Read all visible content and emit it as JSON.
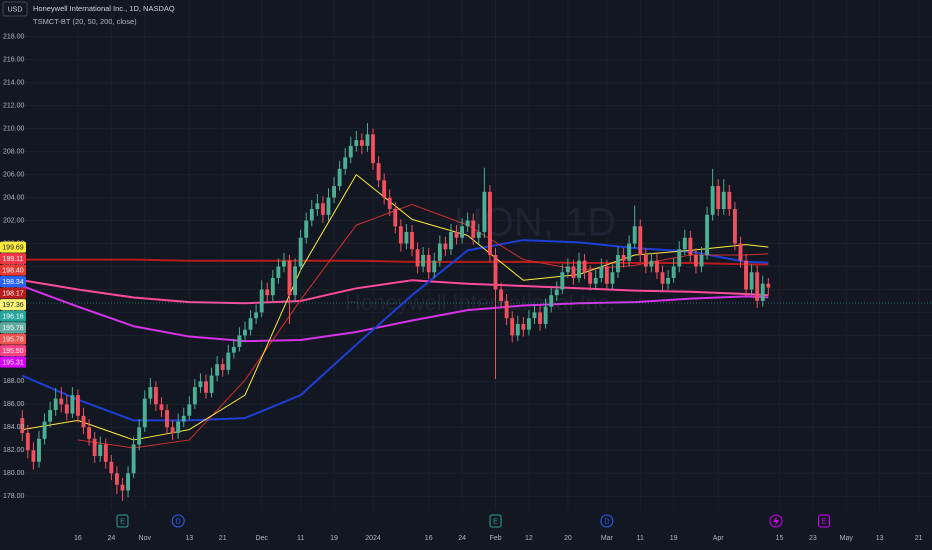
{
  "chart_data": {
    "type": "candlestick",
    "title": "Honeywell International Inc., 1D, NASDAQ",
    "subtitle": "TSMCT-BT (20, 50, 200, close)",
    "currency": "USD",
    "watermark": [
      "HON, 1D",
      "Honeywell International Inc."
    ],
    "up_color": "#4caf93",
    "down_color": "#f0505e",
    "grid": true,
    "ylim": [
      176.8,
      221.2
    ],
    "xlim": [
      -4,
      163.4
    ],
    "yticks": [
      {
        "value": 178,
        "label": "178.00"
      },
      {
        "value": 180,
        "label": "180.00"
      },
      {
        "value": 182,
        "label": "182.00"
      },
      {
        "value": 184,
        "label": "184.00"
      },
      {
        "value": 186,
        "label": "186.00"
      },
      {
        "value": 188,
        "label": "188.00"
      },
      {
        "value": 190,
        "label": "190.00"
      },
      {
        "value": 192,
        "label": "192.00"
      },
      {
        "value": 194,
        "label": "194.00"
      },
      {
        "value": 196,
        "label": "196.00"
      },
      {
        "value": 198,
        "label": "198.00"
      },
      {
        "value": 200,
        "label": "200.00"
      },
      {
        "value": 202,
        "label": "202.00"
      },
      {
        "value": 204,
        "label": "204.00"
      },
      {
        "value": 206,
        "label": "206.00"
      },
      {
        "value": 208,
        "label": "208.00"
      },
      {
        "value": 210,
        "label": "210.00"
      },
      {
        "value": 212,
        "label": "212.00"
      },
      {
        "value": 214,
        "label": "214.00"
      },
      {
        "value": 216,
        "label": "216.00"
      },
      {
        "value": 218,
        "label": "218.00"
      }
    ],
    "xticks": [
      {
        "value": 10,
        "label": "16"
      },
      {
        "value": 16,
        "label": "24"
      },
      {
        "value": 22,
        "label": "Nov"
      },
      {
        "value": 30,
        "label": "13"
      },
      {
        "value": 36,
        "label": "21"
      },
      {
        "value": 43,
        "label": "Dec"
      },
      {
        "value": 50,
        "label": "11"
      },
      {
        "value": 56,
        "label": "19"
      },
      {
        "value": 63,
        "label": "2024"
      },
      {
        "value": 73,
        "label": "16"
      },
      {
        "value": 79,
        "label": "24"
      },
      {
        "value": 85,
        "label": "Feb"
      },
      {
        "value": 91,
        "label": "12"
      },
      {
        "value": 98,
        "label": "20"
      },
      {
        "value": 105,
        "label": "Mar"
      },
      {
        "value": 111,
        "label": "11"
      },
      {
        "value": 117,
        "label": "19"
      },
      {
        "value": 125,
        "label": "Apr"
      },
      {
        "value": 136,
        "label": "15"
      },
      {
        "value": 142,
        "label": "23"
      },
      {
        "value": 148,
        "label": "May"
      },
      {
        "value": 154,
        "label": "13"
      },
      {
        "value": 161,
        "label": "21"
      }
    ],
    "ohlc": [
      [
        184.8,
        185.5,
        182.8,
        183.5
      ],
      [
        183.5,
        184.2,
        181.3,
        182.0
      ],
      [
        182.0,
        182.7,
        180.3,
        181.0
      ],
      [
        181.0,
        183.7,
        180.5,
        183.0
      ],
      [
        183.0,
        185.2,
        182.5,
        184.5
      ],
      [
        184.5,
        186.2,
        184.0,
        185.5
      ],
      [
        185.5,
        187.4,
        185.0,
        186.5
      ],
      [
        186.5,
        187.5,
        185.3,
        186.0
      ],
      [
        186.0,
        186.8,
        184.6,
        185.2
      ],
      [
        185.2,
        187.5,
        184.8,
        186.8
      ],
      [
        186.8,
        187.3,
        184.4,
        185.0
      ],
      [
        185.0,
        185.7,
        183.4,
        184.0
      ],
      [
        184.0,
        184.7,
        182.4,
        183.0
      ],
      [
        183.0,
        183.6,
        180.9,
        181.5
      ],
      [
        181.5,
        183.2,
        181.0,
        182.5
      ],
      [
        182.5,
        183.0,
        180.4,
        181.0
      ],
      [
        181.0,
        181.6,
        179.4,
        180.0
      ],
      [
        180.0,
        180.6,
        178.2,
        179.0
      ],
      [
        179.0,
        179.6,
        177.6,
        178.5
      ],
      [
        178.5,
        180.6,
        177.9,
        180.0
      ],
      [
        180.0,
        183.2,
        179.6,
        182.5
      ],
      [
        182.5,
        184.7,
        182.0,
        184.0
      ],
      [
        184.0,
        187.2,
        183.6,
        186.5
      ],
      [
        186.5,
        188.3,
        186.0,
        187.5
      ],
      [
        187.5,
        188.0,
        185.4,
        186.0
      ],
      [
        186.0,
        186.6,
        184.9,
        185.5
      ],
      [
        185.5,
        186.0,
        183.4,
        184.0
      ],
      [
        184.0,
        184.6,
        182.9,
        183.5
      ],
      [
        183.5,
        185.2,
        183.0,
        184.5
      ],
      [
        184.5,
        185.7,
        184.0,
        185.0
      ],
      [
        185.0,
        186.7,
        184.6,
        186.0
      ],
      [
        186.0,
        188.2,
        185.6,
        187.5
      ],
      [
        187.5,
        188.7,
        187.0,
        188.0
      ],
      [
        188.0,
        188.6,
        186.5,
        187.0
      ],
      [
        187.0,
        189.2,
        186.6,
        188.5
      ],
      [
        188.5,
        190.2,
        188.0,
        189.5
      ],
      [
        189.5,
        190.0,
        188.4,
        189.0
      ],
      [
        189.0,
        191.2,
        188.6,
        190.5
      ],
      [
        190.5,
        191.7,
        190.0,
        191.0
      ],
      [
        191.0,
        192.7,
        190.6,
        192.0
      ],
      [
        192.0,
        193.2,
        191.5,
        192.5
      ],
      [
        192.5,
        194.2,
        192.0,
        193.5
      ],
      [
        193.5,
        194.7,
        193.0,
        194.0
      ],
      [
        194.0,
        196.8,
        193.6,
        196.0
      ],
      [
        196.0,
        196.6,
        194.8,
        195.5
      ],
      [
        195.5,
        197.7,
        195.0,
        197.0
      ],
      [
        197.0,
        198.7,
        196.5,
        198.0
      ],
      [
        198.0,
        199.2,
        197.5,
        198.5
      ],
      [
        198.5,
        199.0,
        193.0,
        195.5
      ],
      [
        195.5,
        198.7,
        195.0,
        198.0
      ],
      [
        198.0,
        201.2,
        197.6,
        200.5
      ],
      [
        200.5,
        202.7,
        200.0,
        202.0
      ],
      [
        202.0,
        203.8,
        201.5,
        203.0
      ],
      [
        203.0,
        204.3,
        202.4,
        203.5
      ],
      [
        203.5,
        204.1,
        201.8,
        202.5
      ],
      [
        202.5,
        204.8,
        202.0,
        204.0
      ],
      [
        204.0,
        205.8,
        203.5,
        205.0
      ],
      [
        205.0,
        207.2,
        204.6,
        206.5
      ],
      [
        206.5,
        208.3,
        206.0,
        207.5
      ],
      [
        207.5,
        209.3,
        207.0,
        208.5
      ],
      [
        208.5,
        209.8,
        208.0,
        209.0
      ],
      [
        209.0,
        209.6,
        207.8,
        208.5
      ],
      [
        208.5,
        210.5,
        208.0,
        209.5
      ],
      [
        209.5,
        210.0,
        206.4,
        207.0
      ],
      [
        207.0,
        207.6,
        204.9,
        205.5
      ],
      [
        205.5,
        206.1,
        203.4,
        204.0
      ],
      [
        204.0,
        204.7,
        202.4,
        203.0
      ],
      [
        203.0,
        203.6,
        200.9,
        201.5
      ],
      [
        201.5,
        202.1,
        199.3,
        200.0
      ],
      [
        200.0,
        201.7,
        199.5,
        201.0
      ],
      [
        201.0,
        201.6,
        198.9,
        199.5
      ],
      [
        199.5,
        200.1,
        197.4,
        198.0
      ],
      [
        198.0,
        199.7,
        197.5,
        199.0
      ],
      [
        199.0,
        199.6,
        196.9,
        197.5
      ],
      [
        197.5,
        199.2,
        197.0,
        198.5
      ],
      [
        198.5,
        200.7,
        198.0,
        200.0
      ],
      [
        200.0,
        200.6,
        198.9,
        199.5
      ],
      [
        199.5,
        201.7,
        199.0,
        201.0
      ],
      [
        201.0,
        201.6,
        199.9,
        200.5
      ],
      [
        200.5,
        202.2,
        200.0,
        201.5
      ],
      [
        201.5,
        202.7,
        201.0,
        202.0
      ],
      [
        202.0,
        202.6,
        199.9,
        200.5
      ],
      [
        200.5,
        201.7,
        200.0,
        201.0
      ],
      [
        201.0,
        206.6,
        200.5,
        204.5
      ],
      [
        204.5,
        205.1,
        198.4,
        199.0
      ],
      [
        199.0,
        199.6,
        188.2,
        196.0
      ],
      [
        196.0,
        196.6,
        194.4,
        195.0
      ],
      [
        195.0,
        195.6,
        192.9,
        193.5
      ],
      [
        193.5,
        194.1,
        191.4,
        192.0
      ],
      [
        192.0,
        193.7,
        191.5,
        193.0
      ],
      [
        193.0,
        193.6,
        191.9,
        192.5
      ],
      [
        192.5,
        194.2,
        192.0,
        193.5
      ],
      [
        193.5,
        194.7,
        193.0,
        194.0
      ],
      [
        194.0,
        194.6,
        192.4,
        193.0
      ],
      [
        193.0,
        195.2,
        192.6,
        194.5
      ],
      [
        194.5,
        196.2,
        194.0,
        195.5
      ],
      [
        195.5,
        196.7,
        195.0,
        196.0
      ],
      [
        196.0,
        198.2,
        195.6,
        197.5
      ],
      [
        197.5,
        198.7,
        197.0,
        198.0
      ],
      [
        198.0,
        198.6,
        196.4,
        197.0
      ],
      [
        197.0,
        199.2,
        196.6,
        198.5
      ],
      [
        198.5,
        199.1,
        196.9,
        197.5
      ],
      [
        197.5,
        198.1,
        195.9,
        196.5
      ],
      [
        196.5,
        197.7,
        196.0,
        197.0
      ],
      [
        197.0,
        198.7,
        196.6,
        198.0
      ],
      [
        198.0,
        198.6,
        195.9,
        196.5
      ],
      [
        196.5,
        198.2,
        196.0,
        197.5
      ],
      [
        197.5,
        199.7,
        197.0,
        199.0
      ],
      [
        199.0,
        199.6,
        197.9,
        198.5
      ],
      [
        198.5,
        200.7,
        198.0,
        200.0
      ],
      [
        200.0,
        203.3,
        199.6,
        201.5
      ],
      [
        201.5,
        202.1,
        198.4,
        199.0
      ],
      [
        199.0,
        199.6,
        197.4,
        198.0
      ],
      [
        198.0,
        199.2,
        197.5,
        198.5
      ],
      [
        198.5,
        199.1,
        196.9,
        197.5
      ],
      [
        197.5,
        198.1,
        195.9,
        196.5
      ],
      [
        196.5,
        197.7,
        196.0,
        197.0
      ],
      [
        197.0,
        198.7,
        196.6,
        198.0
      ],
      [
        198.0,
        200.2,
        197.5,
        199.5
      ],
      [
        199.5,
        201.2,
        199.0,
        200.5
      ],
      [
        200.5,
        201.1,
        198.4,
        199.0
      ],
      [
        199.0,
        199.6,
        197.4,
        198.0
      ],
      [
        198.0,
        199.7,
        197.5,
        199.0
      ],
      [
        199.0,
        203.2,
        198.6,
        202.5
      ],
      [
        202.5,
        206.5,
        202.0,
        205.0
      ],
      [
        205.0,
        205.6,
        202.4,
        203.0
      ],
      [
        203.0,
        205.6,
        202.5,
        204.5
      ],
      [
        204.5,
        205.1,
        202.4,
        203.0
      ],
      [
        203.0,
        203.6,
        199.4,
        200.0
      ],
      [
        200.0,
        200.6,
        197.9,
        198.5
      ],
      [
        198.5,
        199.1,
        195.4,
        196.0
      ],
      [
        196.0,
        198.2,
        195.5,
        197.5
      ],
      [
        197.5,
        198.1,
        194.4,
        195.0
      ],
      [
        195.0,
        197.2,
        194.5,
        196.5
      ],
      [
        196.5,
        197.0,
        195.5,
        196.16
      ]
    ],
    "series": [
      {
        "color": "#b71c1c",
        "width": 2,
        "x": [
          0,
          10,
          20,
          30,
          40,
          50,
          60,
          70,
          80,
          90,
          100,
          110,
          120,
          130,
          134
        ],
        "values": [
          198.6,
          198.6,
          198.6,
          198.5,
          198.5,
          198.5,
          198.5,
          198.4,
          198.4,
          198.4,
          198.3,
          198.3,
          198.3,
          198.2,
          198.17
        ]
      },
      {
        "color": "#ff4b9b",
        "width": 2,
        "x": [
          0,
          10,
          20,
          30,
          40,
          50,
          60,
          70,
          80,
          90,
          100,
          110,
          120,
          130,
          134
        ],
        "values": [
          196.8,
          196.0,
          195.3,
          194.9,
          194.8,
          195.0,
          196.1,
          196.8,
          196.5,
          196.3,
          196.1,
          195.9,
          195.8,
          195.6,
          195.5
        ]
      },
      {
        "color": "#d633e8",
        "width": 2,
        "x": [
          0,
          10,
          20,
          30,
          40,
          50,
          60,
          70,
          80,
          90,
          100,
          110,
          120,
          130,
          134
        ],
        "values": [
          196.3,
          194.5,
          192.8,
          191.9,
          191.5,
          191.6,
          192.3,
          193.3,
          194.2,
          194.6,
          194.8,
          194.9,
          195.2,
          195.4,
          195.31
        ]
      },
      {
        "color": "#1e3fd6",
        "width": 2,
        "x": [
          0,
          10,
          20,
          30,
          40,
          50,
          60,
          70,
          80,
          90,
          100,
          110,
          120,
          130,
          134
        ],
        "values": [
          188.5,
          186.4,
          184.6,
          184.6,
          184.8,
          186.8,
          191.2,
          195.5,
          199.4,
          200.3,
          200.1,
          199.6,
          199.3,
          198.4,
          198.34
        ]
      },
      {
        "color": "#d32f2f",
        "width": 1,
        "x": [
          10,
          20,
          30,
          40,
          50,
          60,
          70,
          80,
          90,
          100,
          110,
          120,
          130,
          134
        ],
        "values": [
          182.9,
          182.2,
          182.9,
          188.1,
          195.1,
          201.6,
          203.4,
          201.6,
          198.6,
          197.7,
          198.1,
          199.0,
          199.0,
          199.11
        ]
      },
      {
        "color": "#ffeb3b",
        "width": 1,
        "x": [
          0,
          10,
          20,
          30,
          40,
          50,
          60,
          70,
          80,
          90,
          100,
          110,
          120,
          130,
          134
        ],
        "values": [
          183.8,
          184.6,
          182.9,
          183.8,
          186.8,
          197.7,
          206.0,
          202.1,
          200.7,
          196.8,
          197.3,
          199.0,
          199.4,
          199.9,
          199.69
        ]
      }
    ],
    "scale_labels": [
      {
        "value": 199.69,
        "label": "199.69",
        "color": "#ffeb3b",
        "text_color": "#131722"
      },
      {
        "value": 199.11,
        "label": "199.11",
        "color": "#f23645",
        "text_color": "#ffffff"
      },
      {
        "value": 198.4,
        "label": "198.40",
        "color": "#e53935",
        "text_color": "#ffffff"
      },
      {
        "value": 198.34,
        "label": "198.34",
        "color": "#2962ff",
        "text_color": "#ffffff"
      },
      {
        "value": 198.17,
        "label": "198.17",
        "color": "#b71c1c",
        "text_color": "#ffffff"
      },
      {
        "value": 197.36,
        "label": "197.36",
        "color": "#fff176",
        "text_color": "#131722"
      },
      {
        "value": 196.16,
        "label": "196.16",
        "color": "#26a69a",
        "text_color": "#ffffff"
      },
      {
        "value": 195.78,
        "label": "195.78",
        "color": "#5fa9a0",
        "text_color": "#ffffff"
      },
      {
        "value": 195.78,
        "label": "195.78",
        "color": "#ef5350",
        "text_color": "#ffffff"
      },
      {
        "value": 195.5,
        "label": "195.50",
        "color": "#ff4081",
        "text_color": "#ffffff"
      },
      {
        "value": 195.31,
        "label": "195.31",
        "color": "#d500f9",
        "text_color": "#ffffff"
      }
    ],
    "events": [
      {
        "x": 18,
        "label": "E",
        "color": "#26a69a"
      },
      {
        "x": 28,
        "label": "D",
        "color": "#2962ff"
      },
      {
        "x": 85,
        "label": "E",
        "color": "#26a69a"
      },
      {
        "x": 105,
        "label": "D",
        "color": "#2962ff"
      },
      {
        "x": 144,
        "label": "E",
        "color": "#d500f9"
      }
    ]
  }
}
